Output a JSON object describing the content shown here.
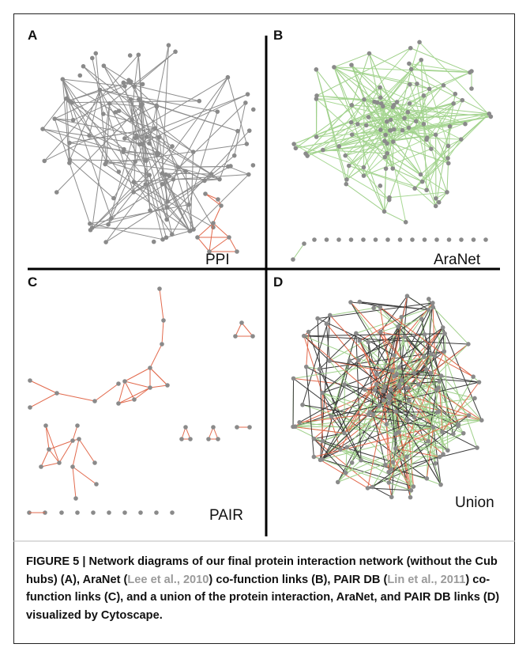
{
  "figure": {
    "panels": [
      {
        "letter": "A",
        "name": "PPI"
      },
      {
        "letter": "B",
        "name": "AraNet"
      },
      {
        "letter": "C",
        "name": "PAIR"
      },
      {
        "letter": "D",
        "name": "Union"
      }
    ],
    "caption": {
      "lead": "FIGURE 5 | Network diagrams of our final protein interaction network (without the Cub hubs) (A), AraNet (",
      "cite1": "Lee et al., 2010",
      "mid": ") co-function links (B), PAIR DB (",
      "cite2": "Lin et al., 2011",
      "tail": ") co-function links (C), and a union of the protein interaction, AraNet, and PAIR DB links (D) visualized by Cytoscape."
    }
  }
}
